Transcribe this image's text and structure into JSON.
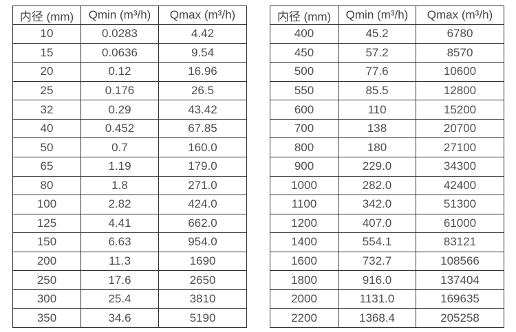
{
  "page": {
    "background_color": "#ffffff",
    "border_color": "#333333",
    "text_color": "#4f4f4f"
  },
  "tables": [
    {
      "name": "flow-table-small-diameters",
      "headers": [
        "内径 (mm)",
        "Qmin (m³/h)",
        "Qmax (m³/h)"
      ],
      "rows": [
        [
          "10",
          "0.0283",
          "4.42"
        ],
        [
          "15",
          "0.0636",
          "9.54"
        ],
        [
          "20",
          "0.12",
          "16.96"
        ],
        [
          "25",
          "0.176",
          "26.5"
        ],
        [
          "32",
          "0.29",
          "43.42"
        ],
        [
          "40",
          "0.452",
          "67.85"
        ],
        [
          "50",
          "0.7",
          "160.0"
        ],
        [
          "65",
          "1.19",
          "179.0"
        ],
        [
          "80",
          "1.8",
          "271.0"
        ],
        [
          "100",
          "2.82",
          "424.0"
        ],
        [
          "125",
          "4.41",
          "662.0"
        ],
        [
          "150",
          "6.63",
          "954.0"
        ],
        [
          "200",
          "11.3",
          "1690"
        ],
        [
          "250",
          "17.6",
          "2650"
        ],
        [
          "300",
          "25.4",
          "3810"
        ],
        [
          "350",
          "34.6",
          "5190"
        ]
      ]
    },
    {
      "name": "flow-table-large-diameters",
      "headers": [
        "内径 (mm)",
        "Qmin (m³/h)",
        "Qmax (m³/h)"
      ],
      "rows": [
        [
          "400",
          "45.2",
          "6780"
        ],
        [
          "450",
          "57.2",
          "8570"
        ],
        [
          "500",
          "77.6",
          "10600"
        ],
        [
          "550",
          "85.5",
          "12800"
        ],
        [
          "600",
          "110",
          "15200"
        ],
        [
          "700",
          "138",
          "20700"
        ],
        [
          "800",
          "180",
          "27100"
        ],
        [
          "900",
          "229.0",
          "34300"
        ],
        [
          "1000",
          "282.0",
          "42400"
        ],
        [
          "1100",
          "342.0",
          "51300"
        ],
        [
          "1200",
          "407.0",
          "61000"
        ],
        [
          "1400",
          "554.1",
          "83121"
        ],
        [
          "1600",
          "732.7",
          "108566"
        ],
        [
          "1800",
          "916.0",
          "137404"
        ],
        [
          "2000",
          "1131.0",
          "169635"
        ],
        [
          "2200",
          "1368.4",
          "205258"
        ]
      ]
    }
  ]
}
